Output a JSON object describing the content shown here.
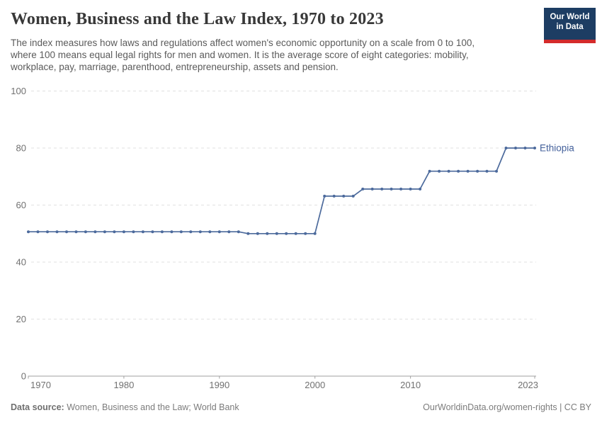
{
  "header": {
    "title": "Women, Business and the Law Index, 1970 to 2023",
    "subtitle": "The index measures how laws and regulations affect women's economic opportunity on a scale from 0 to 100,\nwhere 100 means equal legal rights for men and women. It is the average score of eight categories: mobility,\nworkplace, pay, marriage, parenthood, entrepreneurship, assets and pension.",
    "logo": {
      "line1": "Our World",
      "line2": "in Data"
    }
  },
  "footer": {
    "datasource_label": "Data source:",
    "datasource_value": " Women, Business and the Law; World Bank",
    "attribution": "OurWorldinData.org/women-rights | CC BY"
  },
  "colors": {
    "line": "#4c6a9c",
    "entity_label": "#44619b",
    "grid": "#e0e0e0",
    "axis_line": "#a0a0a0",
    "tick_text": "#717171",
    "logo_bg": "#1d3d63",
    "logo_red": "#d42b2b"
  },
  "chart_data": {
    "type": "line",
    "title": "Women, Business and the Law Index, 1970 to 2023",
    "xlabel": "",
    "ylabel": "",
    "xlim": [
      1970,
      2023
    ],
    "ylim": [
      0,
      100
    ],
    "xticks": [
      1970,
      1980,
      1990,
      2000,
      2010,
      2023
    ],
    "yticks": [
      0,
      20,
      40,
      60,
      80,
      100
    ],
    "grid": "horizontal-dashed",
    "legend_position": "end-of-line-label",
    "series": [
      {
        "name": "Ethiopia",
        "x": [
          1970,
          1971,
          1972,
          1973,
          1974,
          1975,
          1976,
          1977,
          1978,
          1979,
          1980,
          1981,
          1982,
          1983,
          1984,
          1985,
          1986,
          1987,
          1988,
          1989,
          1990,
          1991,
          1992,
          1993,
          1994,
          1995,
          1996,
          1997,
          1998,
          1999,
          2000,
          2001,
          2002,
          2003,
          2004,
          2005,
          2006,
          2007,
          2008,
          2009,
          2010,
          2011,
          2012,
          2013,
          2014,
          2015,
          2016,
          2017,
          2018,
          2019,
          2020,
          2021,
          2022,
          2023
        ],
        "values": [
          50.625,
          50.625,
          50.625,
          50.625,
          50.625,
          50.625,
          50.625,
          50.625,
          50.625,
          50.625,
          50.625,
          50.625,
          50.625,
          50.625,
          50.625,
          50.625,
          50.625,
          50.625,
          50.625,
          50.625,
          50.625,
          50.625,
          50.625,
          50,
          50,
          50,
          50,
          50,
          50,
          50,
          50,
          63.125,
          63.125,
          63.125,
          63.125,
          65.625,
          65.625,
          65.625,
          65.625,
          65.625,
          65.625,
          65.625,
          71.875,
          71.875,
          71.875,
          71.875,
          71.875,
          71.875,
          71.875,
          71.875,
          80,
          80,
          80,
          80
        ]
      }
    ]
  }
}
